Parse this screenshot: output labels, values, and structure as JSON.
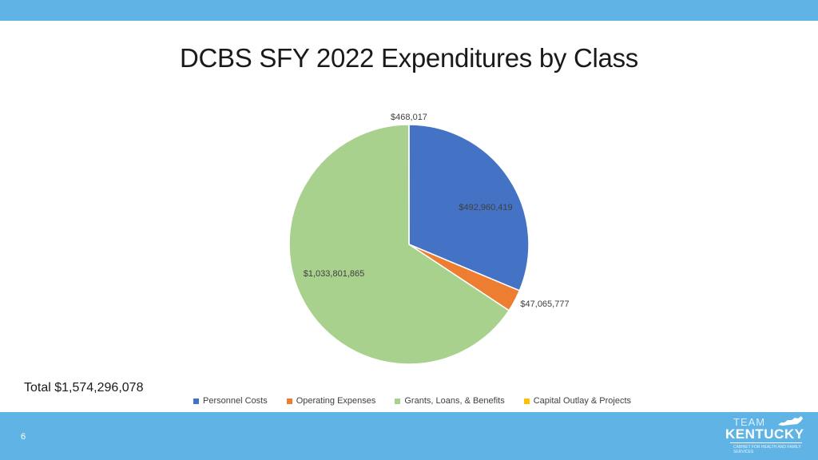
{
  "slide": {
    "title": "DCBS SFY 2022 Expenditures by Class",
    "total_label": "Total $1,574,296,078",
    "page_number": "6"
  },
  "logo": {
    "line1": "TEAM",
    "line2": "KENTUCKY",
    "tagline": "CABINET FOR HEALTH AND FAMILY SERVICES"
  },
  "chart_data": {
    "type": "pie",
    "title": "",
    "legend_position": "bottom",
    "start_angle_deg": 0,
    "direction": "clockwise",
    "slices": [
      {
        "name": "Personnel Costs",
        "value": 492960419,
        "label": "$492,960,419",
        "color": "#4472c4"
      },
      {
        "name": "Operating Expenses",
        "value": 47065777,
        "label": "$47,065,777",
        "color": "#ed7d31"
      },
      {
        "name": "Grants, Loans, & Benefits",
        "value": 1033801865,
        "label": "$1,033,801,865",
        "color": "#a9d18e"
      },
      {
        "name": "Capital Outlay & Projects",
        "value": 468017,
        "label": "$468,017",
        "color": "#ffc000"
      }
    ]
  }
}
